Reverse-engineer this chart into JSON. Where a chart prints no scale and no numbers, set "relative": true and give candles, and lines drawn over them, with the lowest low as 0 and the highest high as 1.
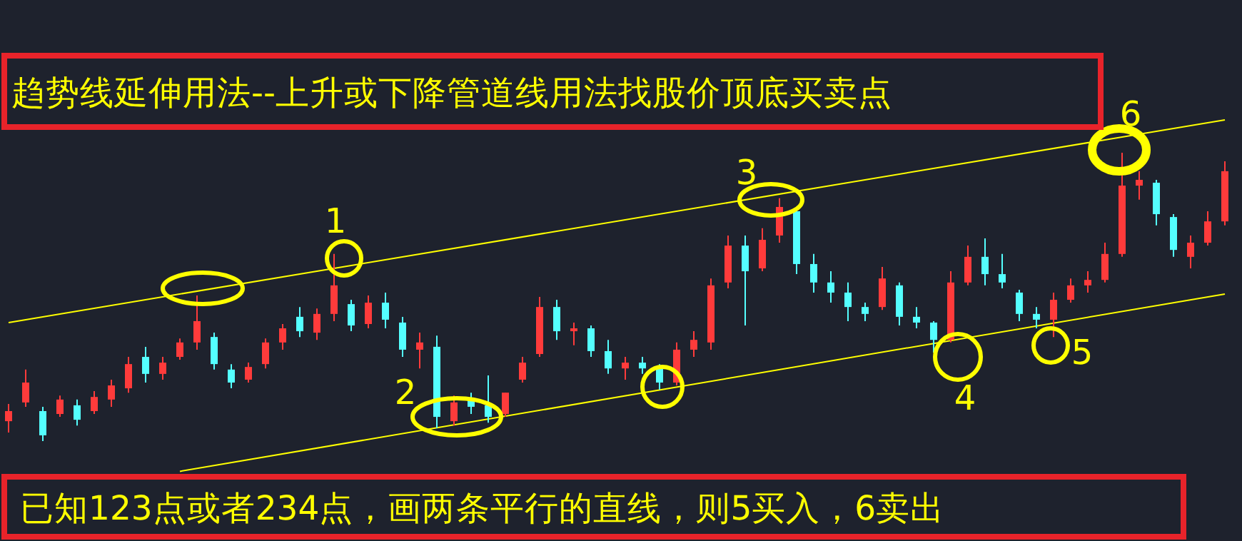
{
  "chart_data": {
    "type": "candlestick",
    "relative": true,
    "title": "趋势线延伸用法--上升或下降管道线用法找股价顶底买卖点",
    "annotations": [
      "已知123点或者234点，画两条平行的直线，则5买入，6卖出",
      "1",
      "2",
      "3",
      "4",
      "5",
      "6"
    ],
    "categories": [
      null,
      null,
      null,
      null,
      null,
      null,
      null,
      null,
      null,
      null,
      null,
      null,
      null,
      null,
      null,
      null,
      null,
      null,
      null,
      null,
      null,
      null,
      null,
      null,
      null,
      null,
      null,
      null,
      null,
      null,
      null,
      null,
      null,
      null,
      null,
      null,
      null,
      null,
      null,
      null,
      null,
      null,
      null,
      null,
      null,
      null,
      null,
      null,
      null,
      null,
      null,
      null,
      null,
      null,
      null,
      null,
      null,
      null,
      null,
      null,
      null,
      null,
      null,
      null,
      null,
      null,
      null,
      null,
      null,
      null,
      null,
      null
    ],
    "ohlc": [
      [
        0.069,
        0.129,
        0.03,
        0.104
      ],
      [
        0.134,
        0.248,
        0.119,
        0.203
      ],
      [
        0.104,
        0.119,
        0,
        0.02
      ],
      [
        0.094,
        0.158,
        0.084,
        0.144
      ],
      [
        0.124,
        0.144,
        0.054,
        0.074
      ],
      [
        0.104,
        0.173,
        0.094,
        0.153
      ],
      [
        0.144,
        0.213,
        0.119,
        0.193
      ],
      [
        0.183,
        0.292,
        0.168,
        0.267
      ],
      [
        0.292,
        0.327,
        0.203,
        0.233
      ],
      [
        0.233,
        0.292,
        0.213,
        0.272
      ],
      [
        0.292,
        0.356,
        0.282,
        0.342
      ],
      [
        0.342,
        0.505,
        0.317,
        0.416
      ],
      [
        0.361,
        0.376,
        0.248,
        0.267
      ],
      [
        0.248,
        0.267,
        0.183,
        0.203
      ],
      [
        0.213,
        0.272,
        0.203,
        0.257
      ],
      [
        0.267,
        0.356,
        0.252,
        0.342
      ],
      [
        0.342,
        0.406,
        0.317,
        0.391
      ],
      [
        0.431,
        0.465,
        0.361,
        0.381
      ],
      [
        0.376,
        0.46,
        0.351,
        0.441
      ],
      [
        0.441,
        0.649,
        0.416,
        0.54
      ],
      [
        0.475,
        0.49,
        0.381,
        0.401
      ],
      [
        0.406,
        0.505,
        0.391,
        0.48
      ],
      [
        0.48,
        0.515,
        0.391,
        0.421
      ],
      [
        0.411,
        0.431,
        0.292,
        0.317
      ],
      [
        0.317,
        0.376,
        0.252,
        0.342
      ],
      [
        0.327,
        0.366,
        0.045,
        0.084
      ],
      [
        0.069,
        0.158,
        0.054,
        0.134
      ],
      [
        0.144,
        0.168,
        0.094,
        0.119
      ],
      [
        0.124,
        0.228,
        0.064,
        0.084
      ],
      [
        0.094,
        0.168,
        0.084,
        0.168
      ],
      [
        0.213,
        0.292,
        0.203,
        0.272
      ],
      [
        0.302,
        0.5,
        0.292,
        0.465
      ],
      [
        0.465,
        0.49,
        0.351,
        0.381
      ],
      [
        0.381,
        0.411,
        0.332,
        0.391
      ],
      [
        0.391,
        0.401,
        0.292,
        0.312
      ],
      [
        0.312,
        0.351,
        0.233,
        0.252
      ],
      [
        0.252,
        0.292,
        0.213,
        0.272
      ],
      [
        0.272,
        0.292,
        0.233,
        0.252
      ],
      [
        0.252,
        0.267,
        0.178,
        0.203
      ],
      [
        0.203,
        0.342,
        0.193,
        0.317
      ],
      [
        0.317,
        0.381,
        0.292,
        0.351
      ],
      [
        0.342,
        0.564,
        0.317,
        0.54
      ],
      [
        0.55,
        0.713,
        0.53,
        0.678
      ],
      [
        0.678,
        0.713,
        0.401,
        0.589
      ],
      [
        0.599,
        0.738,
        0.589,
        0.698
      ],
      [
        0.713,
        0.842,
        0.688,
        0.812
      ],
      [
        0.797,
        0.812,
        0.579,
        0.614
      ],
      [
        0.614,
        0.649,
        0.515,
        0.55
      ],
      [
        0.55,
        0.589,
        0.48,
        0.515
      ],
      [
        0.515,
        0.55,
        0.416,
        0.465
      ],
      [
        0.465,
        0.48,
        0.416,
        0.441
      ],
      [
        0.465,
        0.604,
        0.455,
        0.564
      ],
      [
        0.54,
        0.55,
        0.401,
        0.431
      ],
      [
        0.431,
        0.465,
        0.391,
        0.411
      ],
      [
        0.411,
        0.416,
        0.307,
        0.351
      ],
      [
        0.351,
        0.589,
        0.342,
        0.55
      ],
      [
        0.55,
        0.678,
        0.54,
        0.639
      ],
      [
        0.639,
        0.703,
        0.54,
        0.579
      ],
      [
        0.579,
        0.649,
        0.53,
        0.55
      ],
      [
        0.515,
        0.525,
        0.416,
        0.441
      ],
      [
        0.441,
        0.465,
        0.391,
        0.421
      ],
      [
        0.421,
        0.515,
        0.361,
        0.49
      ],
      [
        0.49,
        0.564,
        0.48,
        0.54
      ],
      [
        0.54,
        0.589,
        0.515,
        0.559
      ],
      [
        0.559,
        0.688,
        0.55,
        0.649
      ],
      [
        0.649,
        1,
        0.639,
        0.886
      ],
      [
        0.886,
        0.936,
        0.837,
        0.906
      ],
      [
        0.896,
        0.906,
        0.748,
        0.787
      ],
      [
        0.777,
        0.787,
        0.639,
        0.663
      ],
      [
        0.639,
        0.713,
        0.599,
        0.688
      ],
      [
        0.688,
        0.797,
        0.678,
        0.762
      ],
      [
        0.762,
        0.97,
        0.748,
        0.936
      ]
    ],
    "series": [
      {
        "type": "line",
        "color": "#ffff00",
        "values": [
          0.411,
          null,
          null,
          null,
          null,
          null,
          null,
          null,
          null,
          null,
          null,
          null,
          null,
          null,
          null,
          null,
          null,
          null,
          null,
          null,
          null,
          null,
          null,
          null,
          null,
          null,
          null,
          null,
          null,
          null,
          null,
          null,
          null,
          null,
          null,
          null,
          null,
          null,
          null,
          null,
          null,
          null,
          null,
          null,
          null,
          null,
          null,
          null,
          null,
          null,
          null,
          null,
          null,
          null,
          null,
          null,
          null,
          null,
          null,
          null,
          null,
          null,
          null,
          null,
          null,
          null,
          null,
          null,
          null,
          null,
          null,
          1.114
        ]
      },
      {
        "type": "line",
        "color": "#ffff00",
        "values": [
          null,
          null,
          null,
          null,
          null,
          null,
          null,
          null,
          null,
          null,
          -0.105,
          null,
          null,
          null,
          null,
          null,
          null,
          null,
          null,
          null,
          null,
          null,
          null,
          null,
          null,
          null,
          null,
          null,
          null,
          null,
          null,
          null,
          null,
          null,
          null,
          null,
          null,
          null,
          null,
          null,
          null,
          null,
          null,
          null,
          null,
          null,
          null,
          null,
          null,
          null,
          null,
          null,
          null,
          null,
          null,
          null,
          null,
          null,
          null,
          null,
          null,
          null,
          null,
          null,
          null,
          null,
          null,
          null,
          null,
          null,
          null,
          0.51
        ]
      }
    ]
  }
}
